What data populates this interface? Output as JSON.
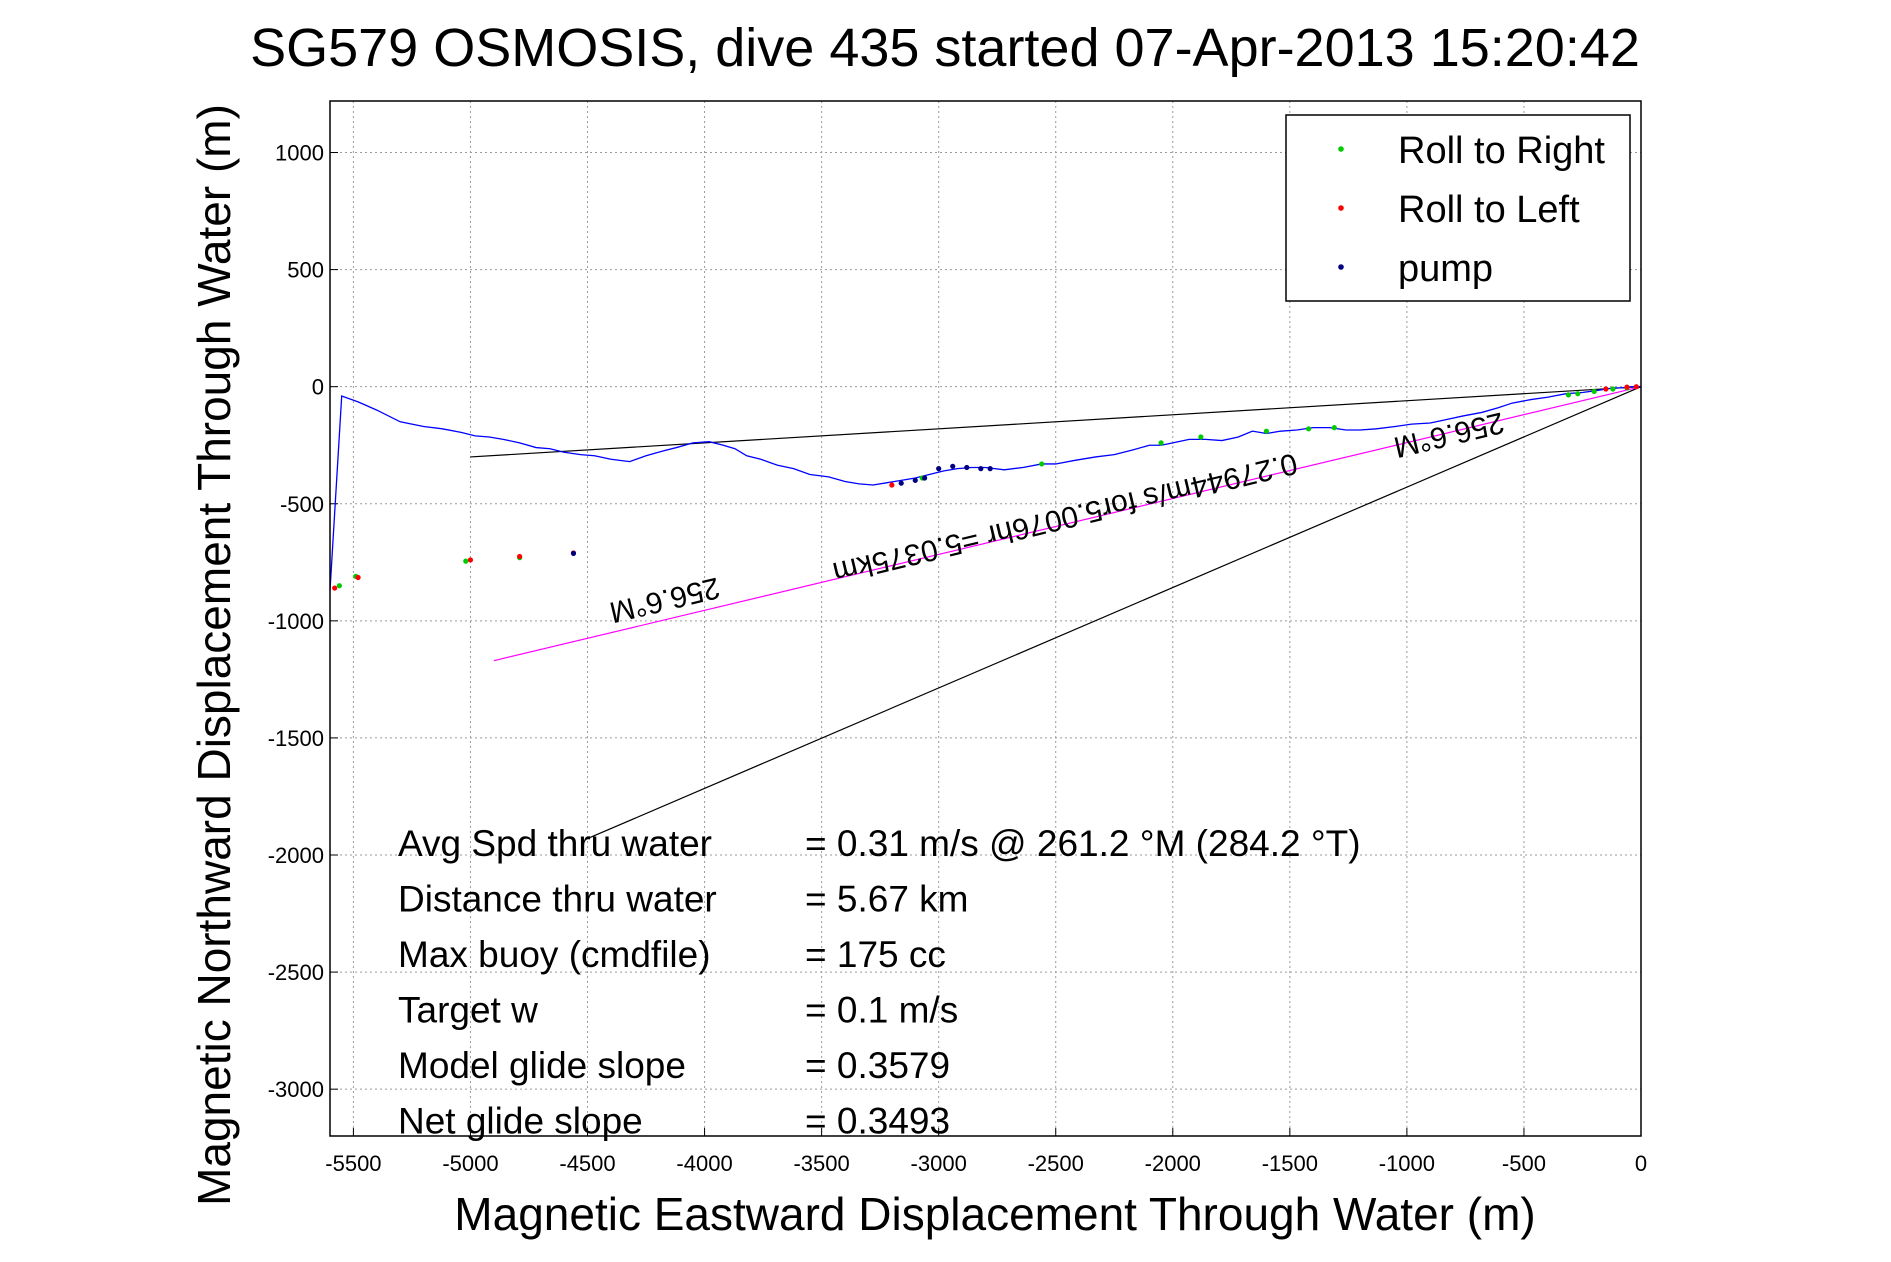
{
  "chart_data": {
    "type": "line",
    "title": "SG579 OSMOSIS, dive 435 started 07-Apr-2013 15:20:42",
    "xlabel": "Magnetic Eastward Displacement Through Water (m)",
    "ylabel": "Magnetic Northward Displacement Through Water (m)",
    "xlim": [
      -5600,
      0
    ],
    "ylim": [
      -3200,
      1220
    ],
    "xticks": [
      -5500,
      -5000,
      -4500,
      -4000,
      -3500,
      -3000,
      -2500,
      -2000,
      -1500,
      -1000,
      -500,
      0
    ],
    "yticks": [
      1000,
      500,
      0,
      -500,
      -1000,
      -1500,
      -2000,
      -2500,
      -3000
    ],
    "grid": true,
    "legend_position": "top-right",
    "colors": {
      "track": "#0000ff",
      "roll_right": "#00cc00",
      "roll_left": "#ff0000",
      "pump": "#000080",
      "vector": "#ff00ff",
      "bounds": "#000000"
    },
    "legend": [
      {
        "label": "Roll to Right",
        "color": "#00cc00"
      },
      {
        "label": "Roll to Left",
        "color": "#ff0000"
      },
      {
        "label": "pump",
        "color": "#000080"
      }
    ],
    "series": [
      {
        "name": "track",
        "x": [
          0,
          -40,
          -80,
          -120,
          -180,
          -250,
          -320,
          -400,
          -470,
          -550,
          -610,
          -680,
          -760,
          -830,
          -900,
          -980,
          -1050,
          -1130,
          -1200,
          -1260,
          -1330,
          -1400,
          -1470,
          -1540,
          -1600,
          -1660,
          -1720,
          -1790,
          -1860,
          -1930,
          -2000,
          -2050,
          -2100,
          -2170,
          -2250,
          -2330,
          -2420,
          -2500,
          -2560,
          -2640,
          -2720,
          -2800,
          -2860,
          -2920,
          -2980,
          -3040,
          -3100,
          -3160,
          -3220,
          -3280,
          -3340,
          -3400,
          -3470,
          -3550,
          -3620,
          -3690,
          -3760,
          -3820,
          -3870,
          -3920,
          -3980,
          -4050,
          -4120,
          -4180,
          -4250,
          -4320,
          -4400,
          -4470,
          -4530,
          -4600,
          -4660,
          -4720,
          -4790,
          -4860,
          -4920,
          -4980,
          -5040,
          -5120,
          -5200,
          -5300,
          -5400,
          -5480,
          -5550,
          -5600
        ],
        "y": [
          0,
          0,
          -5,
          -5,
          -15,
          -25,
          -30,
          -45,
          -55,
          -70,
          -90,
          -110,
          -125,
          -140,
          -155,
          -160,
          -170,
          -180,
          -185,
          -185,
          -175,
          -175,
          -185,
          -190,
          -200,
          -190,
          -215,
          -230,
          -225,
          -225,
          -240,
          -250,
          -250,
          -270,
          -290,
          -300,
          -315,
          -330,
          -330,
          -345,
          -355,
          -345,
          -345,
          -350,
          -360,
          -375,
          -390,
          -400,
          -410,
          -420,
          -415,
          -405,
          -385,
          -375,
          -350,
          -335,
          -310,
          -295,
          -265,
          -250,
          -235,
          -240,
          -260,
          -275,
          -295,
          -320,
          -310,
          -295,
          -290,
          -280,
          -265,
          -260,
          -240,
          -225,
          -215,
          -210,
          -195,
          -180,
          -170,
          -150,
          -100,
          -65,
          -40,
          -870
        ],
        "color": "#0000ff"
      },
      {
        "name": "Roll to Right",
        "x": [
          -60,
          -120,
          -200,
          -270,
          -310,
          -1310,
          -1420,
          -1600,
          -1880,
          -2050,
          -2560,
          -3070,
          -4790,
          -5020,
          -5490,
          -5560
        ],
        "y": [
          -5,
          -10,
          -20,
          -30,
          -35,
          -175,
          -180,
          -190,
          -215,
          -240,
          -330,
          -390,
          -730,
          -745,
          -810,
          -850
        ],
        "color": "#00cc00"
      },
      {
        "name": "Roll to Left",
        "x": [
          -20,
          -60,
          -150,
          -3200,
          -4560,
          -4790,
          -5000,
          -5480,
          -5580
        ],
        "y": [
          0,
          -2,
          -10,
          -420,
          -710,
          -725,
          -740,
          -815,
          -860
        ],
        "color": "#ff0000"
      },
      {
        "name": "pump",
        "x": [
          -3100,
          -3060,
          -3000,
          -2940,
          -2880,
          -2820,
          -2780,
          -3160,
          -4560
        ],
        "y": [
          -400,
          -390,
          -350,
          -340,
          -345,
          -350,
          -350,
          -412,
          -712
        ],
        "color": "#000080"
      }
    ],
    "lines": [
      {
        "name": "current_vector",
        "from": [
          0,
          0
        ],
        "to": [
          -4900,
          -1170
        ],
        "color": "#ff00ff"
      },
      {
        "name": "upper_bound",
        "from": [
          0,
          0
        ],
        "to": [
          -5000,
          -300
        ],
        "color": "#000000"
      },
      {
        "name": "lower_bound",
        "from": [
          0,
          0
        ],
        "to": [
          -4500,
          -1930
        ],
        "color": "#000000"
      }
    ],
    "annotations": [
      {
        "text": "256.6°M",
        "x": -4180,
        "y": -870,
        "rotate": 180
      },
      {
        "text": "0.27944m/s for5.0076hr =5.0375km",
        "x": -2470,
        "y": -520,
        "rotate": 180
      },
      {
        "text": "256.6°M",
        "x": -830,
        "y": -165,
        "rotate": 180
      }
    ],
    "summary": [
      {
        "label": "Avg Spd thru water",
        "value": "=  0.31 m/s @ 261.2 °M (284.2 °T)"
      },
      {
        "label": "Distance thru water",
        "value": "=  5.67 km"
      },
      {
        "label": "Max buoy (cmdfile)",
        "value": "= 175 cc"
      },
      {
        "label": "Target w",
        "value": "= 0.1 m/s"
      },
      {
        "label": "Model glide slope",
        "value": "= 0.3579"
      },
      {
        "label": "Net glide slope",
        "value": "= 0.3493"
      }
    ]
  }
}
